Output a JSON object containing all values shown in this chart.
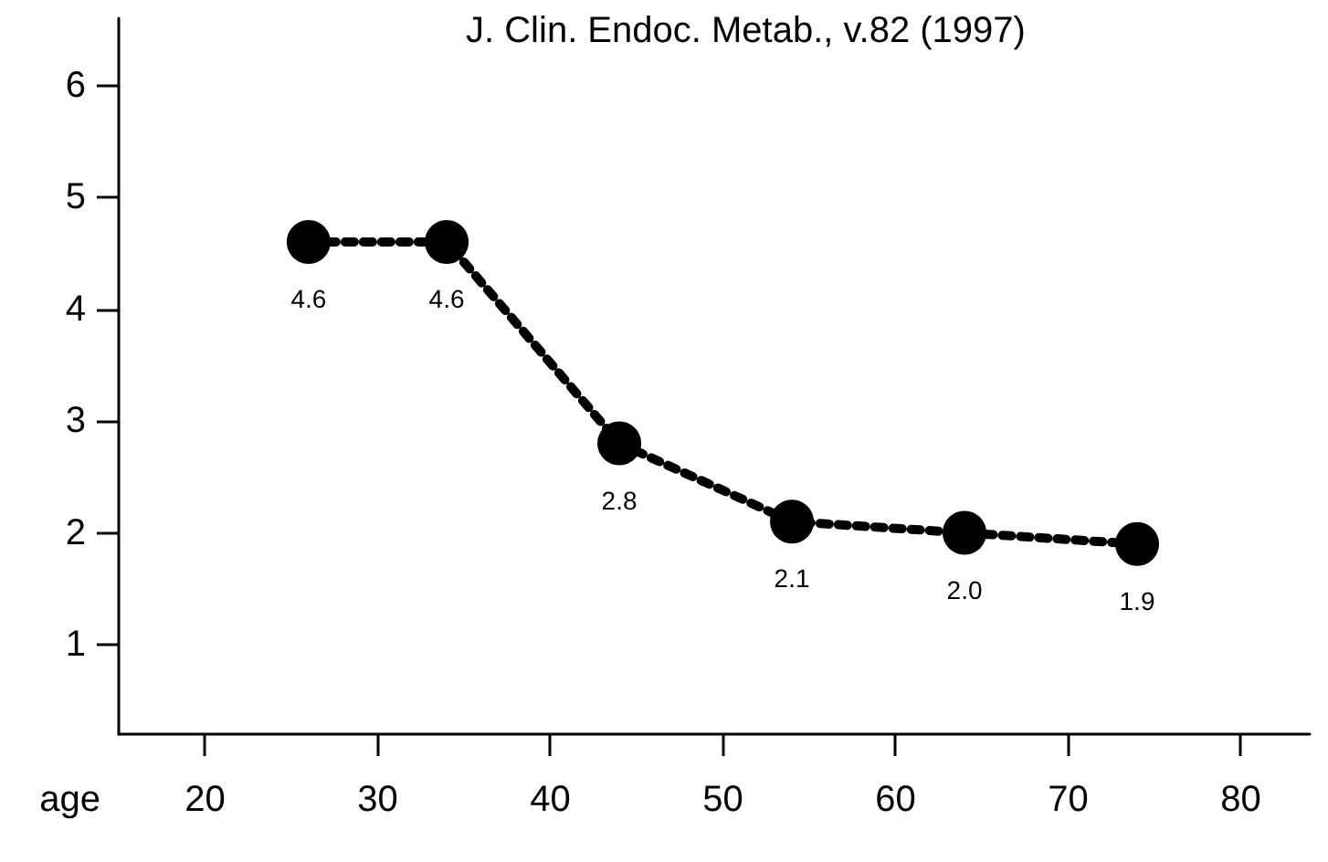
{
  "chart_data": {
    "type": "line",
    "title": "J. Clin. Endoc. Metab., v.82 (1997)",
    "xlabel": "age",
    "x": [
      26,
      34,
      44,
      54,
      64,
      74
    ],
    "values": [
      4.6,
      4.6,
      2.8,
      2.1,
      2.0,
      1.9
    ],
    "value_labels": [
      "4.6",
      "4.6",
      "2.8",
      "2.1",
      "2.0",
      "1.9"
    ],
    "color": "#000000",
    "marker": "circle",
    "line_style": "dotted",
    "xlim": [
      15,
      84
    ],
    "xticks": [
      20,
      30,
      40,
      50,
      60,
      70,
      80
    ],
    "ylim": [
      0.2,
      6.6
    ],
    "yticks": [
      1,
      2,
      3,
      4,
      5,
      6
    ],
    "grid": false
  }
}
